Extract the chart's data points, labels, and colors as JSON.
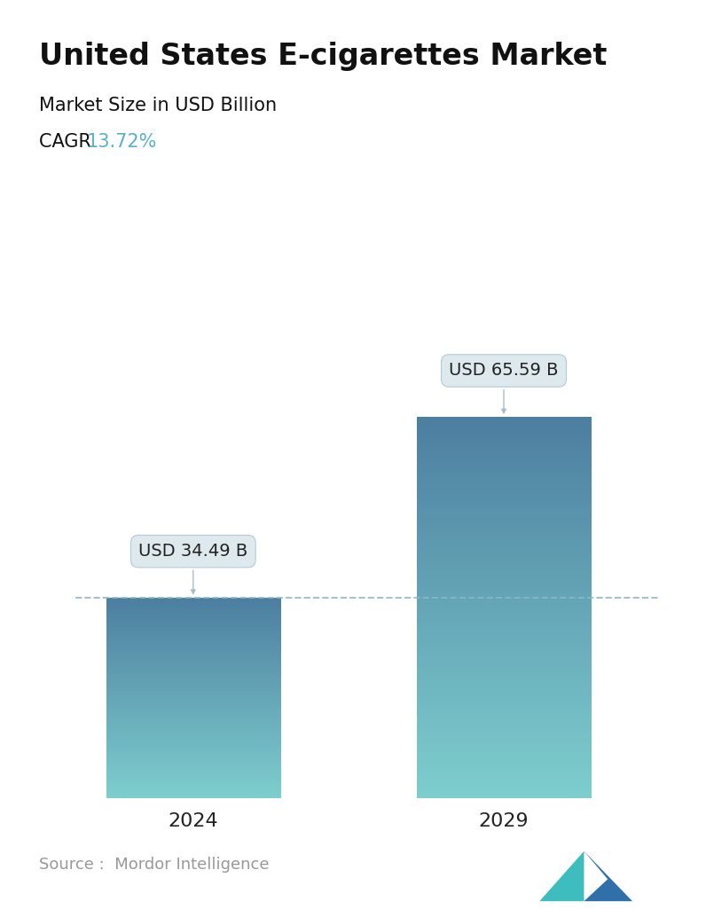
{
  "title": "United States E-cigarettes Market",
  "subtitle": "Market Size in USD Billion",
  "cagr_label": "CAGR  ",
  "cagr_value": "13.72%",
  "cagr_color": "#5aafcf",
  "years": [
    "2024",
    "2029"
  ],
  "values": [
    34.49,
    65.59
  ],
  "labels": [
    "USD 34.49 B",
    "USD 65.59 B"
  ],
  "bar_color_top": "#4d7fa0",
  "bar_color_bottom": "#7ecece",
  "dashed_line_color": "#88b8cc",
  "source_text": "Source :  Mordor Intelligence",
  "source_color": "#999999",
  "background_color": "#ffffff",
  "title_fontsize": 24,
  "subtitle_fontsize": 15,
  "cagr_fontsize": 15,
  "label_fontsize": 14,
  "xtick_fontsize": 16,
  "source_fontsize": 13,
  "anno_box_color": "#dde8ee",
  "anno_edge_color": "#b0c8d8",
  "anno_arrow_color": "#aabbcc"
}
